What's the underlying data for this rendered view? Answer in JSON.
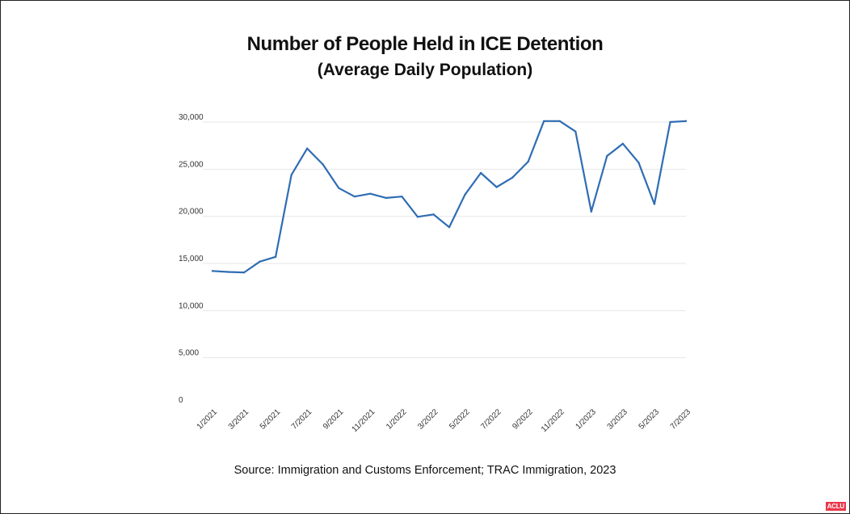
{
  "chart_data": {
    "type": "line",
    "title": "Number of People Held in ICE Detention",
    "subtitle": "(Average Daily Population)",
    "source": "Source: Immigration and Customs Enforcement; TRAC Immigration, 2023",
    "ylim": [
      0,
      30000
    ],
    "yticks": [
      0,
      5000,
      10000,
      15000,
      20000,
      25000,
      30000
    ],
    "ytick_labels": [
      "0",
      "5,000",
      "10,000",
      "15,000",
      "20,000",
      "25,000",
      "30,000"
    ],
    "xtick_labels": [
      "1/2021",
      "3/2021",
      "5/2021",
      "7/2021",
      "9/2021",
      "11/2021",
      "1/2022",
      "3/2022",
      "5/2022",
      "7/2022",
      "9/2022",
      "11/2022",
      "1/2023",
      "3/2023",
      "5/2023",
      "7/2023"
    ],
    "x": [
      "1/2021",
      "2/2021",
      "3/2021",
      "4/2021",
      "5/2021",
      "6/2021",
      "7/2021",
      "8/2021",
      "9/2021",
      "10/2021",
      "11/2021",
      "12/2021",
      "1/2022",
      "2/2022",
      "3/2022",
      "4/2022",
      "5/2022",
      "6/2022",
      "7/2022",
      "8/2022",
      "9/2022",
      "10/2022",
      "11/2022",
      "12/2022",
      "1/2023",
      "2/2023",
      "3/2023",
      "4/2023",
      "5/2023",
      "6/2023",
      "7/2023"
    ],
    "values": [
      14200,
      14100,
      14050,
      15200,
      15700,
      24400,
      27200,
      25500,
      23000,
      22100,
      22400,
      21950,
      22100,
      19950,
      20200,
      18850,
      22300,
      24600,
      23100,
      24100,
      25800,
      30100,
      30100,
      29000,
      20500,
      26400,
      27700,
      25700,
      21300,
      30000,
      30100
    ],
    "grid": true,
    "legend": "none",
    "line_color": "#2f6db3",
    "grid_color": "#e6e6e6"
  },
  "logo": {
    "text": "ACLU",
    "color": "#e8394a"
  }
}
